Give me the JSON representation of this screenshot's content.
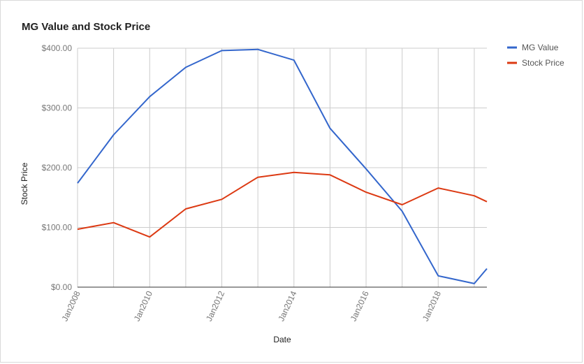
{
  "chart_data": {
    "type": "line",
    "title": "MG Value and Stock Price",
    "xlabel": "Date",
    "ylabel": "Stock Price",
    "ylim": [
      0,
      400
    ],
    "yticks": [
      "$0.00",
      "$100.00",
      "$200.00",
      "$300.00",
      "$400.00"
    ],
    "ytick_values": [
      0,
      100,
      200,
      300,
      400
    ],
    "xticks": [
      "Jan2008",
      "Jan2010",
      "Jan2012",
      "Jan2014",
      "Jan2016",
      "Jan2018"
    ],
    "xtick_years": [
      2008,
      2010,
      2012,
      2014,
      2016,
      2018
    ],
    "xlim": [
      2008,
      2019.35
    ],
    "grid": true,
    "legend": "right",
    "x": [
      2008,
      2009,
      2010,
      2011,
      2012,
      2013,
      2014,
      2015,
      2016,
      2017,
      2018,
      2019,
      2019.35
    ],
    "series": [
      {
        "name": "MG Value",
        "color": "#3366cc",
        "values": [
          174,
          255,
          319,
          368,
          396,
          398,
          380,
          266,
          198,
          127,
          19,
          6,
          31
        ]
      },
      {
        "name": "Stock Price",
        "color": "#dc3912",
        "values": [
          97,
          108,
          84,
          131,
          147,
          184,
          192,
          188,
          159,
          138,
          166,
          153,
          143
        ]
      }
    ]
  }
}
